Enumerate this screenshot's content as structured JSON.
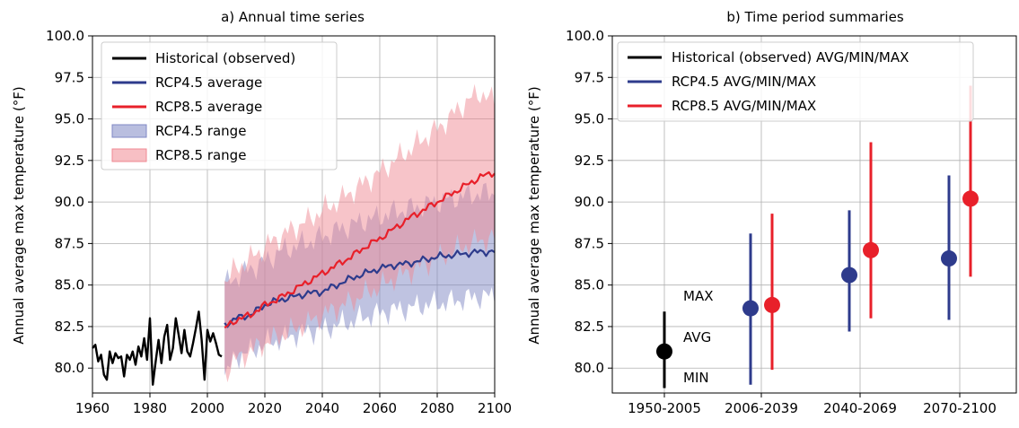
{
  "ylabel_text": "Annual average max temperature (°F)",
  "chart_data": [
    {
      "type": "line",
      "title": "a) Annual time series",
      "xlabel": "",
      "ylabel": "Annual average max temperature (°F)",
      "xlim": [
        1960,
        2100
      ],
      "ylim": [
        78.5,
        100.0
      ],
      "xticks": [
        "1960",
        "1980",
        "2000",
        "2020",
        "2040",
        "2060",
        "2080",
        "2100"
      ],
      "yticks": [
        "80.0",
        "82.5",
        "85.0",
        "87.5",
        "90.0",
        "92.5",
        "95.0",
        "97.5",
        "100.0"
      ],
      "grid": true,
      "legend_position": "top-left",
      "legend": [
        "Historical (observed)",
        "RCP4.5 average",
        "RCP8.5 average",
        "RCP4.5 range",
        "RCP8.5 range"
      ],
      "colors": {
        "historical": "#000000",
        "rcp45": "#2e3b8c",
        "rcp85": "#e8202a",
        "rcp45_fill": "#8088c4",
        "rcp85_fill": "#f08a93"
      },
      "series": [
        {
          "name": "Historical (observed)",
          "x": [
            1960,
            1961,
            1962,
            1963,
            1964,
            1965,
            1966,
            1967,
            1968,
            1969,
            1970,
            1971,
            1972,
            1973,
            1974,
            1975,
            1976,
            1977,
            1978,
            1979,
            1980,
            1981,
            1982,
            1983,
            1984,
            1985,
            1986,
            1987,
            1988,
            1989,
            1990,
            1991,
            1992,
            1993,
            1994,
            1995,
            1996,
            1997,
            1998,
            1999,
            2000,
            2001,
            2002,
            2003,
            2004,
            2005
          ],
          "y": [
            81.2,
            81.4,
            80.4,
            80.8,
            79.6,
            79.3,
            81.0,
            80.3,
            80.9,
            80.6,
            80.7,
            79.5,
            80.8,
            80.5,
            81.0,
            80.2,
            81.3,
            80.7,
            81.8,
            80.5,
            83.0,
            79.0,
            80.4,
            81.7,
            80.3,
            81.9,
            82.6,
            80.5,
            81.2,
            83.0,
            82.0,
            80.9,
            82.3,
            81.0,
            80.7,
            81.5,
            82.4,
            83.4,
            81.7,
            79.3,
            82.3,
            81.6,
            82.1,
            81.5,
            80.8,
            80.7
          ]
        },
        {
          "name": "RCP4.5 average",
          "x": [
            2006,
            2010,
            2015,
            2020,
            2025,
            2030,
            2035,
            2040,
            2045,
            2050,
            2055,
            2060,
            2065,
            2070,
            2075,
            2080,
            2085,
            2090,
            2095,
            2100
          ],
          "y": [
            82.6,
            83.0,
            83.2,
            83.8,
            84.1,
            84.3,
            84.5,
            84.6,
            85.0,
            85.4,
            85.7,
            86.0,
            86.2,
            86.3,
            86.5,
            86.7,
            86.8,
            86.9,
            87.0,
            87.0
          ]
        },
        {
          "name": "RCP8.5 average",
          "x": [
            2006,
            2010,
            2015,
            2020,
            2025,
            2030,
            2035,
            2040,
            2045,
            2050,
            2055,
            2060,
            2065,
            2070,
            2075,
            2080,
            2085,
            2090,
            2095,
            2100
          ],
          "y": [
            82.4,
            82.9,
            83.2,
            83.8,
            84.2,
            84.7,
            85.2,
            85.7,
            86.2,
            86.7,
            87.3,
            87.8,
            88.4,
            89.0,
            89.5,
            90.0,
            90.5,
            91.0,
            91.5,
            91.8
          ]
        },
        {
          "name": "RCP4.5 range",
          "x": [
            2006,
            2010,
            2015,
            2020,
            2025,
            2030,
            2035,
            2040,
            2045,
            2050,
            2055,
            2060,
            2065,
            2070,
            2075,
            2080,
            2085,
            2090,
            2095,
            2100
          ],
          "low": [
            79.5,
            80.7,
            81.0,
            81.5,
            81.7,
            82.0,
            82.2,
            82.3,
            82.6,
            82.8,
            83.1,
            83.3,
            83.5,
            83.6,
            83.8,
            83.9,
            84.0,
            84.2,
            84.3,
            84.3
          ],
          "high": [
            85.0,
            85.5,
            86.0,
            86.4,
            87.0,
            87.3,
            87.6,
            87.9,
            88.3,
            88.6,
            88.9,
            89.1,
            89.4,
            89.6,
            89.8,
            90.0,
            90.2,
            90.4,
            90.5,
            90.6
          ]
        },
        {
          "name": "RCP8.5 range",
          "x": [
            2006,
            2010,
            2015,
            2020,
            2025,
            2030,
            2035,
            2040,
            2045,
            2050,
            2055,
            2060,
            2065,
            2070,
            2075,
            2080,
            2085,
            2090,
            2095,
            2100
          ],
          "low": [
            79.7,
            80.5,
            81.0,
            81.5,
            81.9,
            82.3,
            82.7,
            83.2,
            83.6,
            84.0,
            84.5,
            84.9,
            85.4,
            85.8,
            86.2,
            86.6,
            87.0,
            87.4,
            87.7,
            87.8
          ],
          "high": [
            85.2,
            86.0,
            86.6,
            87.3,
            87.9,
            88.4,
            88.9,
            89.5,
            90.0,
            90.6,
            91.2,
            91.8,
            92.5,
            93.1,
            93.8,
            94.4,
            95.2,
            96.0,
            96.6,
            96.0
          ]
        }
      ]
    },
    {
      "type": "scatter",
      "title": "b) Time period summaries",
      "xlabel": "",
      "ylabel": "Annual average max temperature (°F)",
      "ylim": [
        78.5,
        100.0
      ],
      "categories": [
        "1950-2005",
        "2006-2039",
        "2040-2069",
        "2070-2100"
      ],
      "yticks": [
        "80.0",
        "82.5",
        "85.0",
        "87.5",
        "90.0",
        "92.5",
        "95.0",
        "97.5",
        "100.0"
      ],
      "grid": true,
      "legend_position": "top-left",
      "legend": [
        "Historical (observed) AVG/MIN/MAX",
        "RCP4.5 AVG/MIN/MAX",
        "RCP8.5 AVG/MIN/MAX"
      ],
      "annotations": [
        "MAX",
        "AVG",
        "MIN"
      ],
      "series": [
        {
          "name": "Historical (observed) AVG/MIN/MAX",
          "color": "#000000",
          "points": [
            {
              "category": "1950-2005",
              "avg": 81.0,
              "min": 78.8,
              "max": 83.4
            }
          ]
        },
        {
          "name": "RCP4.5 AVG/MIN/MAX",
          "color": "#2e3b8c",
          "points": [
            {
              "category": "2006-2039",
              "avg": 83.6,
              "min": 79.0,
              "max": 88.1
            },
            {
              "category": "2040-2069",
              "avg": 85.6,
              "min": 82.2,
              "max": 89.5
            },
            {
              "category": "2070-2100",
              "avg": 86.6,
              "min": 82.9,
              "max": 91.6
            }
          ]
        },
        {
          "name": "RCP8.5 AVG/MIN/MAX",
          "color": "#e8202a",
          "points": [
            {
              "category": "2006-2039",
              "avg": 83.8,
              "min": 79.9,
              "max": 89.3
            },
            {
              "category": "2040-2069",
              "avg": 87.1,
              "min": 83.0,
              "max": 93.6
            },
            {
              "category": "2070-2100",
              "avg": 90.2,
              "min": 85.5,
              "max": 97.0
            }
          ]
        }
      ]
    }
  ]
}
